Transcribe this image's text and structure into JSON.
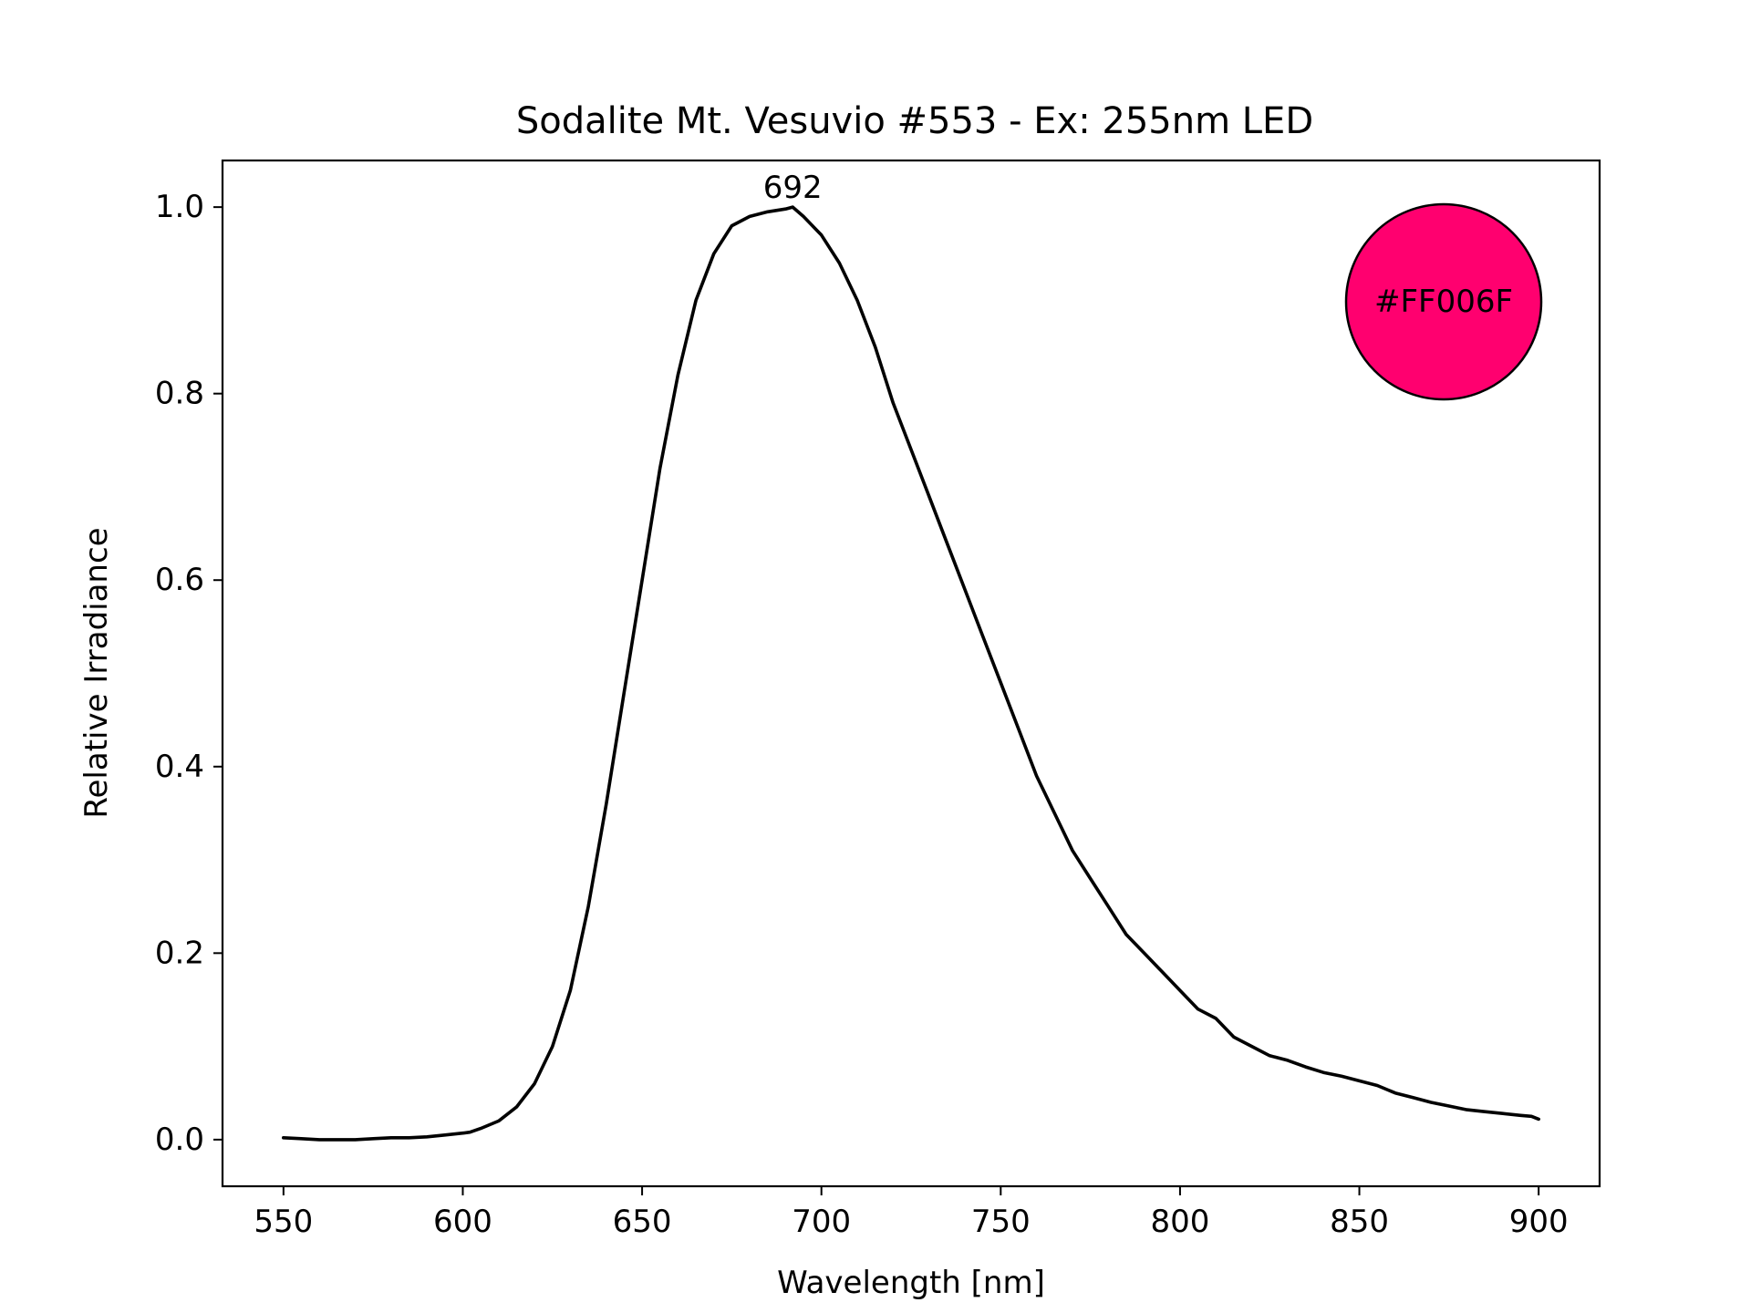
{
  "chart_data": {
    "type": "line",
    "title": "Sodalite Mt. Vesuvio #553 - Ex: 255nm LED",
    "xlabel": "Wavelength [nm]",
    "ylabel": "Relative Irradiance",
    "xlim": [
      533,
      917
    ],
    "ylim": [
      -0.05,
      1.05
    ],
    "xticks": [
      550,
      600,
      650,
      700,
      750,
      800,
      850,
      900
    ],
    "yticks": [
      0.0,
      0.2,
      0.4,
      0.6,
      0.8,
      1.0
    ],
    "xtick_labels": [
      "550",
      "600",
      "650",
      "700",
      "750",
      "800",
      "850",
      "900"
    ],
    "ytick_labels": [
      "0.0",
      "0.2",
      "0.4",
      "0.6",
      "0.8",
      "1.0"
    ],
    "grid": false,
    "line_color": "#000000",
    "series": [
      {
        "x": [
          550,
          555,
          560,
          565,
          570,
          575,
          580,
          585,
          590,
          595,
          600,
          602,
          605,
          610,
          615,
          620,
          625,
          630,
          635,
          640,
          645,
          650,
          655,
          660,
          665,
          670,
          675,
          680,
          685,
          690,
          692,
          695,
          700,
          705,
          710,
          715,
          720,
          725,
          730,
          735,
          740,
          745,
          750,
          755,
          760,
          765,
          770,
          775,
          780,
          785,
          790,
          795,
          800,
          805,
          810,
          815,
          820,
          825,
          830,
          835,
          840,
          845,
          850,
          855,
          860,
          865,
          870,
          875,
          880,
          885,
          890,
          895,
          898,
          900
        ],
        "y": [
          0.002,
          0.001,
          0.0,
          0.0,
          0.0,
          0.001,
          0.002,
          0.002,
          0.003,
          0.005,
          0.007,
          0.008,
          0.012,
          0.02,
          0.035,
          0.06,
          0.1,
          0.16,
          0.25,
          0.36,
          0.48,
          0.6,
          0.72,
          0.82,
          0.9,
          0.95,
          0.98,
          0.99,
          0.995,
          0.998,
          1.0,
          0.99,
          0.97,
          0.94,
          0.9,
          0.85,
          0.79,
          0.74,
          0.69,
          0.64,
          0.59,
          0.54,
          0.49,
          0.44,
          0.39,
          0.35,
          0.31,
          0.28,
          0.25,
          0.22,
          0.2,
          0.18,
          0.16,
          0.14,
          0.13,
          0.11,
          0.1,
          0.09,
          0.085,
          0.078,
          0.072,
          0.068,
          0.063,
          0.058,
          0.05,
          0.045,
          0.04,
          0.036,
          0.032,
          0.03,
          0.028,
          0.026,
          0.025,
          0.022
        ]
      }
    ],
    "annotations": [
      {
        "text": "692",
        "x": 692,
        "y": 1.0
      }
    ],
    "color_swatch": {
      "label": "#FF006F",
      "fill": "#FF006F",
      "placement": "top-right"
    }
  }
}
